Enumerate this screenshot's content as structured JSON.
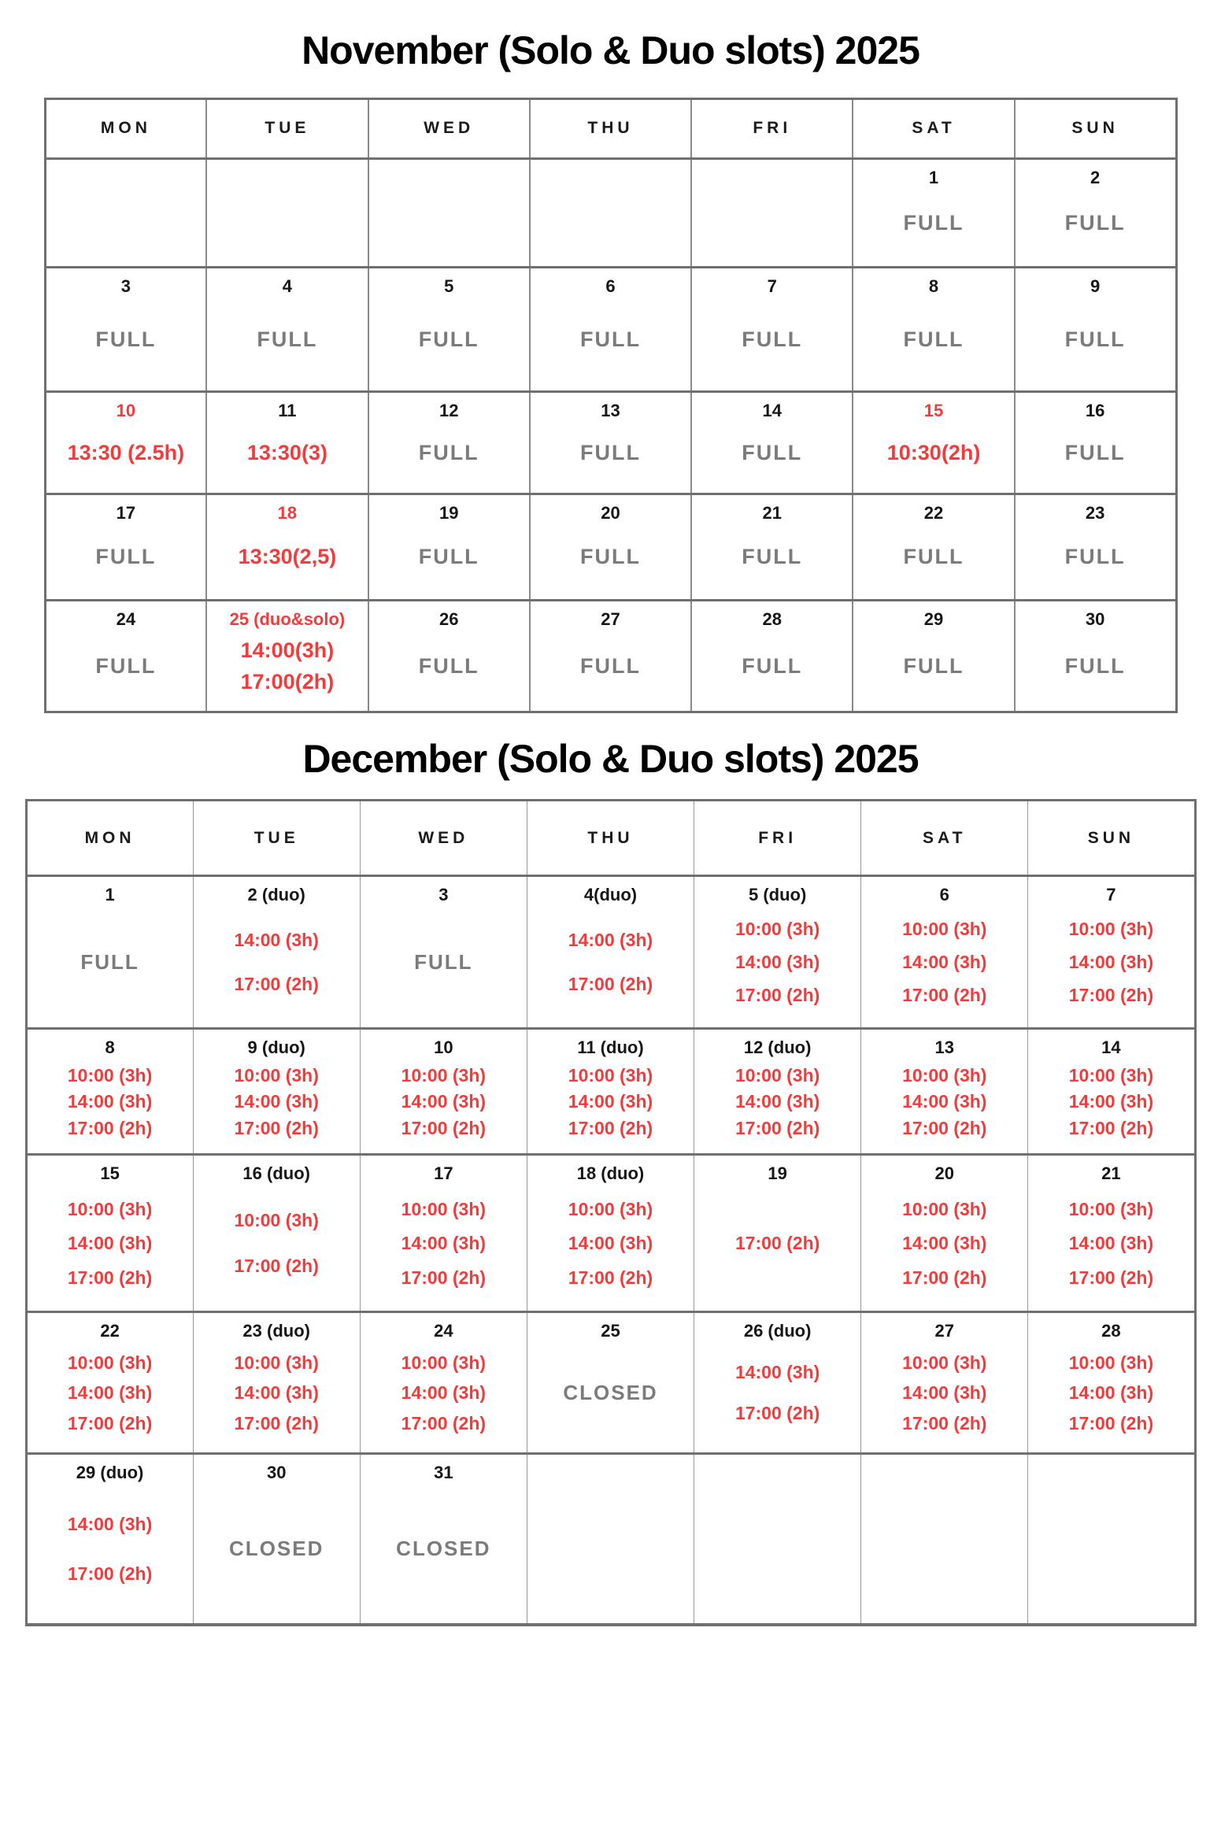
{
  "page": {
    "background": "#ffffff"
  },
  "colors": {
    "slot_red": "#f23b3b",
    "status_gray": "#7b7b7b",
    "text_black": "#141414",
    "grid_line": "#6f6f6f"
  },
  "months": [
    {
      "id": "november",
      "title": "November (Solo & Duo slots) 2025",
      "day_headers": [
        "MON",
        "TUE",
        "WED",
        "THU",
        "FRI",
        "SAT",
        "SUN"
      ],
      "weeks": [
        [
          null,
          null,
          null,
          null,
          null,
          {
            "date": "1",
            "status": "FULL"
          },
          {
            "date": "2",
            "status": "FULL"
          }
        ],
        [
          {
            "date": "3",
            "status": "FULL"
          },
          {
            "date": "4",
            "status": "FULL"
          },
          {
            "date": "5",
            "status": "FULL"
          },
          {
            "date": "6",
            "status": "FULL"
          },
          {
            "date": "7",
            "status": "FULL"
          },
          {
            "date": "8",
            "status": "FULL"
          },
          {
            "date": "9",
            "status": "FULL"
          }
        ],
        [
          {
            "date": "10",
            "date_red": true,
            "slots": [
              "13:30 (2.5h)"
            ]
          },
          {
            "date": "11",
            "slots": [
              "13:30(3)"
            ]
          },
          {
            "date": "12",
            "status": "FULL"
          },
          {
            "date": "13",
            "status": "FULL"
          },
          {
            "date": "14",
            "status": "FULL"
          },
          {
            "date": "15",
            "date_red": true,
            "slots": [
              "10:30(2h)"
            ]
          },
          {
            "date": "16",
            "status": "FULL"
          }
        ],
        [
          {
            "date": "17",
            "status": "FULL"
          },
          {
            "date": "18",
            "date_red": true,
            "slots": [
              "13:30(2,5)"
            ]
          },
          {
            "date": "19",
            "status": "FULL"
          },
          {
            "date": "20",
            "status": "FULL"
          },
          {
            "date": "21",
            "status": "FULL"
          },
          {
            "date": "22",
            "status": "FULL"
          },
          {
            "date": "23",
            "status": "FULL"
          }
        ],
        [
          {
            "date": "24",
            "status": "FULL"
          },
          {
            "date": "25 (duo&solo)",
            "date_red": true,
            "slots": [
              "14:00(3h)",
              "17:00(2h)"
            ]
          },
          {
            "date": "26",
            "status": "FULL"
          },
          {
            "date": "27",
            "status": "FULL"
          },
          {
            "date": "28",
            "status": "FULL"
          },
          {
            "date": "29",
            "status": "FULL"
          },
          {
            "date": "30",
            "status": "FULL"
          }
        ]
      ]
    },
    {
      "id": "december",
      "title": "December (Solo & Duo slots) 2025",
      "day_headers": [
        "MON",
        "TUE",
        "WED",
        "THU",
        "FRI",
        "SAT",
        "SUN"
      ],
      "weeks": [
        [
          {
            "date": "1",
            "status": "FULL"
          },
          {
            "date": "2 (duo)",
            "slots": [
              "14:00 (3h)",
              "17:00 (2h)"
            ]
          },
          {
            "date": "3",
            "status": "FULL"
          },
          {
            "date": "4(duo)",
            "slots": [
              "14:00 (3h)",
              "17:00 (2h)"
            ]
          },
          {
            "date": "5 (duo)",
            "slots": [
              "10:00 (3h)",
              "14:00 (3h)",
              "17:00 (2h)"
            ]
          },
          {
            "date": "6",
            "slots": [
              "10:00 (3h)",
              "14:00 (3h)",
              "17:00 (2h)"
            ]
          },
          {
            "date": "7",
            "slots": [
              "10:00 (3h)",
              "14:00 (3h)",
              "17:00 (2h)"
            ]
          }
        ],
        [
          {
            "date": "8",
            "slots": [
              "10:00 (3h)",
              "14:00 (3h)",
              "17:00 (2h)"
            ]
          },
          {
            "date": "9 (duo)",
            "slots": [
              "10:00 (3h)",
              "14:00 (3h)",
              "17:00 (2h)"
            ]
          },
          {
            "date": "10",
            "slots": [
              "10:00 (3h)",
              "14:00 (3h)",
              "17:00 (2h)"
            ]
          },
          {
            "date": "11 (duo)",
            "slots": [
              "10:00 (3h)",
              "14:00 (3h)",
              "17:00 (2h)"
            ]
          },
          {
            "date": "12 (duo)",
            "slots": [
              "10:00 (3h)",
              "14:00 (3h)",
              "17:00 (2h)"
            ]
          },
          {
            "date": "13",
            "slots": [
              "10:00 (3h)",
              "14:00 (3h)",
              "17:00 (2h)"
            ]
          },
          {
            "date": "14",
            "slots": [
              "10:00 (3h)",
              "14:00 (3h)",
              "17:00 (2h)"
            ]
          }
        ],
        [
          {
            "date": "15",
            "slots": [
              "10:00 (3h)",
              "14:00 (3h)",
              "17:00 (2h)"
            ]
          },
          {
            "date": "16 (duo)",
            "slots": [
              "10:00 (3h)",
              "17:00 (2h)"
            ]
          },
          {
            "date": "17",
            "slots": [
              "10:00 (3h)",
              "14:00 (3h)",
              "17:00 (2h)"
            ]
          },
          {
            "date": "18 (duo)",
            "slots": [
              "10:00 (3h)",
              "14:00 (3h)",
              "17:00 (2h)"
            ]
          },
          {
            "date": "19",
            "slots": [
              "17:00 (2h)"
            ]
          },
          {
            "date": "20",
            "slots": [
              "10:00 (3h)",
              "14:00 (3h)",
              "17:00 (2h)"
            ]
          },
          {
            "date": "21",
            "slots": [
              "10:00 (3h)",
              "14:00 (3h)",
              "17:00 (2h)"
            ]
          }
        ],
        [
          {
            "date": "22",
            "slots": [
              "10:00 (3h)",
              "14:00 (3h)",
              "17:00 (2h)"
            ]
          },
          {
            "date": "23 (duo)",
            "slots": [
              "10:00 (3h)",
              "14:00 (3h)",
              "17:00 (2h)"
            ]
          },
          {
            "date": "24",
            "slots": [
              "10:00 (3h)",
              "14:00 (3h)",
              "17:00 (2h)"
            ]
          },
          {
            "date": "25",
            "status": "CLOSED"
          },
          {
            "date": "26 (duo)",
            "slots": [
              "14:00 (3h)",
              "17:00 (2h)"
            ]
          },
          {
            "date": "27",
            "slots": [
              "10:00 (3h)",
              "14:00 (3h)",
              "17:00 (2h)"
            ]
          },
          {
            "date": "28",
            "slots": [
              "10:00 (3h)",
              "14:00 (3h)",
              "17:00 (2h)"
            ]
          }
        ],
        [
          {
            "date": "29 (duo)",
            "slots": [
              "14:00 (3h)",
              "17:00 (2h)"
            ]
          },
          {
            "date": "30",
            "status": "CLOSED"
          },
          {
            "date": "31",
            "status": "CLOSED"
          },
          null,
          null,
          null,
          null
        ]
      ]
    }
  ]
}
